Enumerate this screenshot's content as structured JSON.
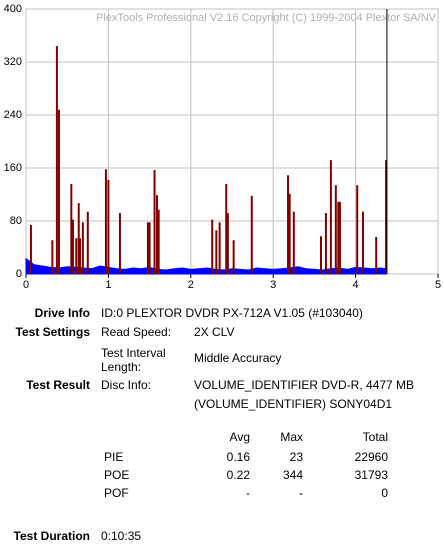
{
  "chart_data": {
    "type": "combo",
    "subtitle": "PlexTools Professional V2.16 Copyright (C) 1999-2004 Plextor SA/NV",
    "xlim": [
      0,
      5
    ],
    "xticks": [
      0,
      1,
      2,
      3,
      4,
      5
    ],
    "ylim": [
      0,
      400
    ],
    "yticks": [
      0,
      80,
      160,
      240,
      320,
      400
    ],
    "grid": true,
    "disc_end_x": 4.38,
    "series": [
      {
        "type": "area",
        "color": "#0000ff",
        "x": [
          0.0,
          0.1,
          0.2,
          0.3,
          0.4,
          0.5,
          0.6,
          0.7,
          0.8,
          0.9,
          1.0,
          1.1,
          1.2,
          1.3,
          1.4,
          1.5,
          1.6,
          1.7,
          1.8,
          1.9,
          2.0,
          2.1,
          2.2,
          2.3,
          2.4,
          2.5,
          2.6,
          2.7,
          2.8,
          2.9,
          3.0,
          3.1,
          3.2,
          3.3,
          3.4,
          3.5,
          3.6,
          3.7,
          3.8,
          3.9,
          4.0,
          4.1,
          4.2,
          4.3,
          4.37
        ],
        "values": [
          23,
          14,
          12,
          10,
          9,
          11,
          10,
          9,
          8,
          12,
          10,
          8,
          7,
          9,
          8,
          10,
          7,
          6,
          8,
          9,
          7,
          8,
          9,
          7,
          6,
          8,
          7,
          6,
          9,
          8,
          7,
          8,
          9,
          11,
          8,
          7,
          6,
          8,
          9,
          7,
          10,
          9,
          8,
          9,
          8
        ]
      },
      {
        "type": "spike",
        "color": "#800000",
        "x": [
          0.06,
          0.32,
          0.375,
          0.4,
          0.55,
          0.57,
          0.61,
          0.64,
          0.655,
          0.69,
          0.75,
          0.97,
          1.0,
          1.14,
          1.48,
          1.5,
          1.56,
          1.59,
          1.61,
          2.26,
          2.31,
          2.35,
          2.43,
          2.45,
          2.52,
          2.74,
          3.18,
          3.2,
          3.25,
          3.58,
          3.64,
          3.7,
          3.76,
          3.79,
          3.81,
          4.02,
          4.09,
          4.25,
          4.37
        ],
        "values": [
          74,
          51,
          344,
          248,
          136,
          82,
          54,
          107,
          54,
          78,
          94,
          158,
          142,
          92,
          78,
          78,
          157,
          119,
          97,
          82,
          66,
          78,
          136,
          92,
          51,
          118,
          149,
          121,
          94,
          57,
          92,
          172,
          134,
          109,
          109,
          134,
          94,
          56,
          172
        ]
      }
    ]
  },
  "info": {
    "drive_info": {
      "label": "Drive Info",
      "value": "ID:0 PLEXTOR DVDR PX-712A V1.05 (#103040)"
    },
    "test_settings": {
      "label": "Test Settings",
      "items": [
        {
          "label": "Read Speed:",
          "value": "2X CLV"
        },
        {
          "label": "Test Interval Length:",
          "value": "Middle Accuracy"
        }
      ]
    },
    "test_result": {
      "label": "Test Result",
      "disc_info_label": "Disc Info:",
      "disc_info": [
        "VOLUME_IDENTIFIER DVD-R, 4477 MB",
        "(VOLUME_IDENTIFIER) SONY04D1"
      ]
    },
    "table": {
      "columns": [
        "Avg",
        "Max",
        "Total"
      ],
      "rows": [
        [
          "PIE",
          "0.16",
          "23",
          "22960"
        ],
        [
          "POE",
          "0.22",
          "344",
          "31793"
        ],
        [
          "POF",
          "-",
          "-",
          "0"
        ]
      ]
    },
    "test_duration": {
      "label": "Test Duration",
      "value": "0:10:35"
    }
  }
}
